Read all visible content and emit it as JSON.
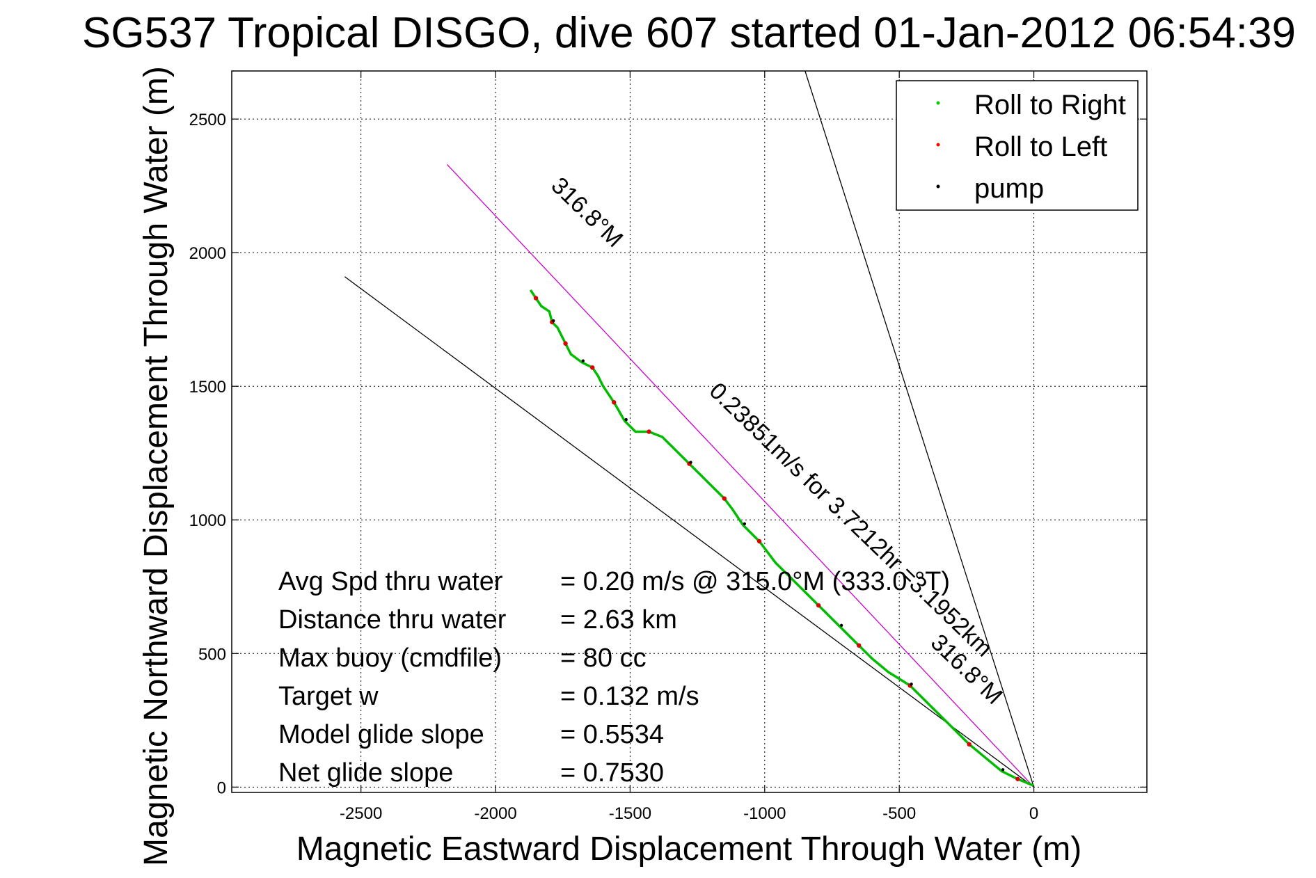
{
  "chart_data": {
    "type": "line",
    "title": "SG537 Tropical DISGO, dive 607 started 01-Jan-2012 06:54:39",
    "xlabel": "Magnetic Eastward Displacement Through Water (m)",
    "ylabel": "Magnetic Northward Displacement Through Water (m)",
    "xlim": [
      -2980,
      420
    ],
    "ylim": [
      -20,
      2680
    ],
    "xticks": [
      -2500,
      -2000,
      -1500,
      -1000,
      -500,
      0
    ],
    "yticks": [
      0,
      500,
      1000,
      1500,
      2000,
      2500
    ],
    "grid": true,
    "legend": {
      "placement": "top-right",
      "entries": [
        {
          "name": "Roll to Right",
          "color": "#00cc00"
        },
        {
          "name": "Roll to Left",
          "color": "#ff0000"
        },
        {
          "name": "pump",
          "color": "#000000"
        }
      ]
    },
    "series": [
      {
        "kind": "track",
        "color": "#00bb00",
        "x": [
          0,
          -60,
          -120,
          -180,
          -240,
          -300,
          -380,
          -460,
          -540,
          -600,
          -650,
          -680,
          -720,
          -800,
          -880,
          -960,
          -1020,
          -1080,
          -1120,
          -1150,
          -1180,
          -1230,
          -1280,
          -1330,
          -1380,
          -1430,
          -1480,
          -1520,
          -1560,
          -1600,
          -1620,
          -1640,
          -1680,
          -1720,
          -1740,
          -1760,
          -1770,
          -1790,
          -1800,
          -1830,
          -1850,
          -1870
        ],
        "y": [
          5,
          30,
          60,
          110,
          160,
          220,
          300,
          380,
          430,
          480,
          530,
          560,
          600,
          680,
          760,
          840,
          920,
          980,
          1040,
          1080,
          1110,
          1160,
          1210,
          1260,
          1310,
          1330,
          1330,
          1370,
          1440,
          1500,
          1540,
          1570,
          1590,
          1620,
          1660,
          1700,
          1720,
          1740,
          1780,
          1800,
          1830,
          1860
        ]
      },
      {
        "kind": "heading-line-magenta",
        "color": "#cc00cc",
        "x": [
          0,
          -2180
        ],
        "y": [
          0,
          2330
        ]
      },
      {
        "kind": "heading-wedge",
        "color": "#000000",
        "x": [
          -850,
          0,
          -2560
        ],
        "y": [
          2680,
          0,
          1910
        ]
      }
    ],
    "annotations": [
      {
        "text": "316.8°M",
        "x": -1680,
        "y": 2130,
        "angle": 44
      },
      {
        "text": "0.23851m/s for 3.7212hr =3.1952km",
        "x": -700,
        "y": 980,
        "angle": 44
      },
      {
        "text": "316.8°M",
        "x": -270,
        "y": 420,
        "angle": 44
      }
    ],
    "stats": [
      {
        "label": "Avg Spd thru water",
        "value": "=  0.20 m/s @ 315.0°M (333.0 °T)"
      },
      {
        "label": "Distance thru water",
        "value": "=  2.63 km"
      },
      {
        "label": "Max buoy (cmdfile)",
        "value": "= 80 cc"
      },
      {
        "label": "Target w",
        "value": "= 0.132 m/s"
      },
      {
        "label": "Model glide slope",
        "value": "= 0.5534"
      },
      {
        "label": "Net glide slope",
        "value": "= 0.7530"
      }
    ]
  }
}
